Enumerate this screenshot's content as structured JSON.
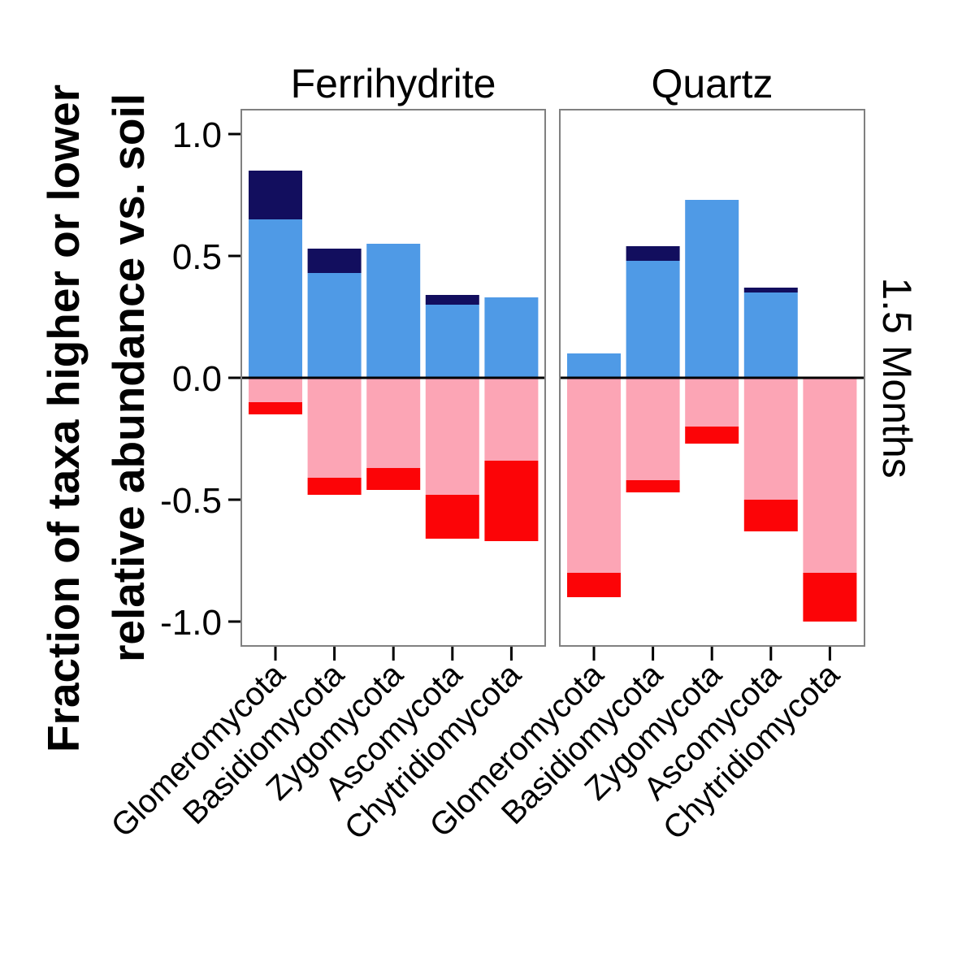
{
  "chart_data": {
    "type": "bar",
    "stacked": true,
    "ylabel_lines": [
      "Fraction of taxa higher or lower",
      "relative abundance vs. soil"
    ],
    "row_strip": "1.5 Months",
    "ylim": [
      -1.1,
      1.1
    ],
    "yticks": [
      1.0,
      0.5,
      0.0,
      -0.5,
      -1.0
    ],
    "ytick_labels": [
      "1.0",
      "0.5",
      "0.0",
      "-0.5",
      "-1.0"
    ],
    "colors": {
      "light_blue": "#4f9ae6",
      "dark_navy": "#120e5e",
      "light_pink": "#fca5b5",
      "red": "#fc0407",
      "zero_line": "#000000",
      "panel_border": "#808080"
    },
    "panels": [
      {
        "title": "Ferrihydrite",
        "categories": [
          "Glomeromycota",
          "Basidiomycota",
          "Zygomycota",
          "Ascomycota",
          "Chytridiomycota"
        ],
        "series": [
          {
            "color": "light_blue",
            "values": [
              0.65,
              0.43,
              0.55,
              0.3,
              0.33
            ]
          },
          {
            "color": "dark_navy",
            "values": [
              0.2,
              0.1,
              0.0,
              0.04,
              0.0
            ]
          },
          {
            "color": "light_pink",
            "values": [
              -0.1,
              -0.41,
              -0.37,
              -0.48,
              -0.34
            ]
          },
          {
            "color": "red",
            "values": [
              -0.05,
              -0.07,
              -0.09,
              -0.18,
              -0.33
            ]
          }
        ]
      },
      {
        "title": "Quartz",
        "categories": [
          "Glomeromycota",
          "Basidiomycota",
          "Zygomycota",
          "Ascomycota",
          "Chytridiomycota"
        ],
        "series": [
          {
            "color": "light_blue",
            "values": [
              0.1,
              0.48,
              0.73,
              0.35,
              0.0
            ]
          },
          {
            "color": "dark_navy",
            "values": [
              0.0,
              0.06,
              0.0,
              0.02,
              0.0
            ]
          },
          {
            "color": "light_pink",
            "values": [
              -0.8,
              -0.42,
              -0.2,
              -0.5,
              -0.8
            ]
          },
          {
            "color": "red",
            "values": [
              -0.1,
              -0.05,
              -0.07,
              -0.13,
              -0.2
            ]
          }
        ]
      }
    ]
  }
}
